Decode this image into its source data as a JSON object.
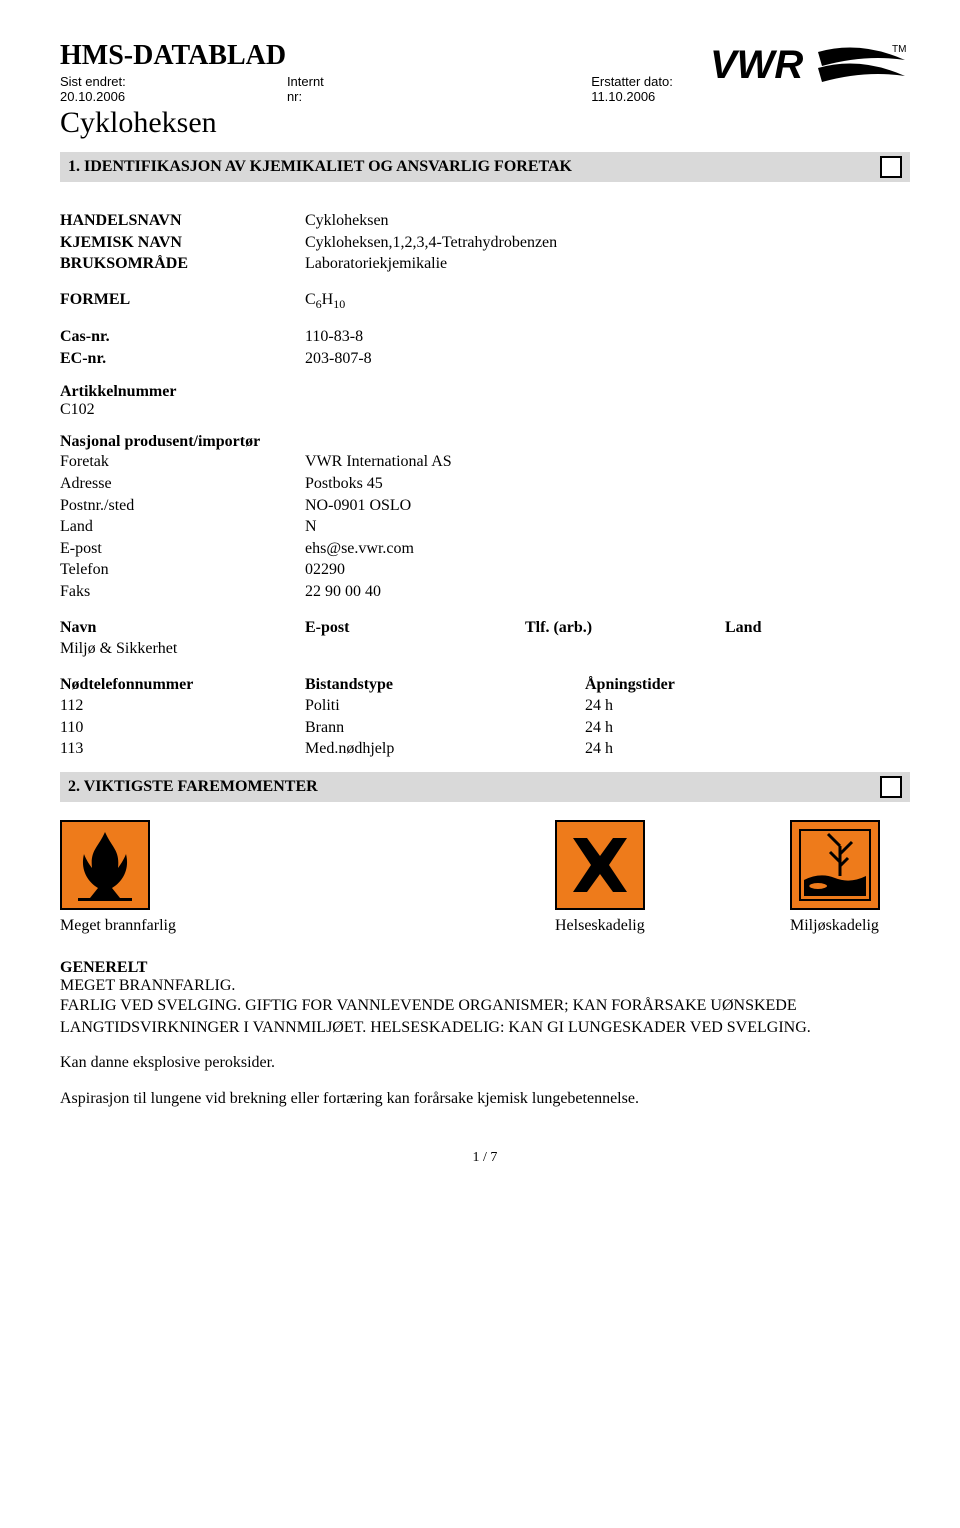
{
  "header": {
    "doc_title": "HMS-DATABLAD",
    "last_changed_label": "Sist endret:",
    "last_changed": "20.10.2006",
    "internal_label": "Internt nr:",
    "internal_nr": "",
    "replaces_label": "Erstatter dato:",
    "replaces": "11.10.2006",
    "product_name": "Cykloheksen",
    "logo_text": "VWR",
    "logo_tm": "TM"
  },
  "section1": {
    "title": "1. IDENTIFIKASJON AV KJEMIKALIET OG ANSVARLIG FORETAK",
    "rows": [
      {
        "label": "HANDELSNAVN",
        "value": "Cykloheksen",
        "bold": true
      },
      {
        "label": "KJEMISK NAVN",
        "value": "Cykloheksen,1,2,3,4-Tetrahydrobenzen",
        "bold": true
      },
      {
        "label": "BRUKSOMRÅDE",
        "value": "Laboratoriekjemikalie",
        "bold": true
      }
    ],
    "formula_label": "FORMEL",
    "formula_base": "C",
    "formula_sub1": "6",
    "formula_h": "H",
    "formula_sub2": "10",
    "cas_label": "Cas-nr.",
    "cas_value": "110-83-8",
    "ec_label": "EC-nr.",
    "ec_value": "203-807-8",
    "article_label": "Artikkelnummer",
    "article_value": "C102",
    "producer_label": "Nasjonal produsent/importør",
    "producer_rows": [
      {
        "label": "Foretak",
        "value": "VWR International AS"
      },
      {
        "label": "Adresse",
        "value": "Postboks 45"
      },
      {
        "label": "Postnr./sted",
        "value": "NO-0901  OSLO"
      },
      {
        "label": "Land",
        "value": "N"
      },
      {
        "label": "E-post",
        "value": "ehs@se.vwr.com"
      },
      {
        "label": "Telefon",
        "value": "02290"
      },
      {
        "label": "Faks",
        "value": "22 90 00 40"
      }
    ],
    "contact_header": {
      "name": "Navn",
      "email": "E-post",
      "tlf": "Tlf. (arb.)",
      "land": "Land"
    },
    "contact_row": {
      "name": "Miljø & Sikkerhet",
      "email": "",
      "tlf": "",
      "land": ""
    },
    "emergency_header": {
      "num": "Nødtelefonnummer",
      "type": "Bistandstype",
      "hours": "Åpningstider"
    },
    "emergency_rows": [
      {
        "num": "112",
        "type": "Politi",
        "hours": "24 h"
      },
      {
        "num": "110",
        "type": "Brann",
        "hours": "24 h"
      },
      {
        "num": "113",
        "type": "Med.nødhjelp",
        "hours": "24 h"
      }
    ]
  },
  "section2": {
    "title": "2. VIKTIGSTE FAREMOMENTER",
    "hazards": [
      {
        "label": "Meget brannfarlig",
        "icon": "flammable",
        "color": "#ee7b1b"
      },
      {
        "label": "Helseskadelig",
        "icon": "harmful",
        "color": "#ee7b1b"
      },
      {
        "label": "Miljøskadelig",
        "icon": "environment",
        "color": "#ee7b1b"
      }
    ],
    "generelt_label": "GENERELT",
    "body1": "MEGET BRANNFARLIG.",
    "body2": "FARLIG VED SVELGING. GIFTIG FOR VANNLEVENDE ORGANISMER; KAN FORÅRSAKE UØNSKEDE LANGTIDSVIRKNINGER I VANNMILJØET. HELSESKADELIG: KAN GI LUNGESKADER VED SVELGING.",
    "body3": "Kan danne eksplosive peroksider.",
    "body4": "Aspirasjon til lungene vid brekning eller fortæring kan forårsake kjemisk lungebetennelse."
  },
  "footer": {
    "page": "1 / 7"
  },
  "colors": {
    "section_bg": "#d9d9d9",
    "hazard_bg": "#ee7b1b"
  }
}
